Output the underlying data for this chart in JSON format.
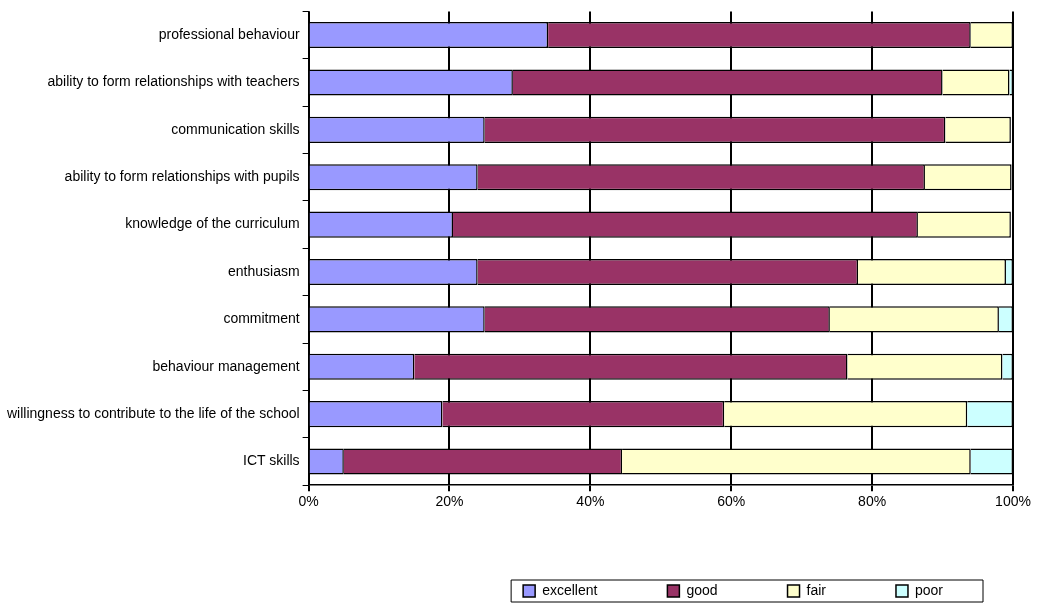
{
  "chart_data": {
    "type": "bar",
    "orientation": "horizontal",
    "stacked": true,
    "categories": [
      "professional behaviour",
      "ability to form relationships with teachers",
      "communication skills",
      "ability to form relationships with pupils",
      "knowledge of the curriculum",
      "enthusiasm",
      "commitment",
      "behaviour management",
      "willingness to contribute to the life of the school",
      "ICT skills"
    ],
    "series": [
      {
        "name": "excellent",
        "color": "#9999ff",
        "values": [
          34,
          29,
          25,
          24,
          20.5,
          24,
          25,
          15,
          19,
          5
        ]
      },
      {
        "name": "good",
        "color": "#993366",
        "values": [
          60,
          61,
          65.4,
          63.5,
          66,
          54,
          49,
          61.5,
          40,
          39.5
        ]
      },
      {
        "name": "fair",
        "color": "#ffffcc",
        "values": [
          6,
          9.5,
          9.3,
          12.3,
          13.2,
          21,
          24,
          22,
          34.5,
          49.5
        ]
      },
      {
        "name": "poor",
        "color": "#ccffff",
        "values": [
          0,
          0.5,
          null,
          null,
          null,
          1,
          2,
          1.5,
          6.5,
          6
        ]
      }
    ],
    "xlim": [
      0,
      100
    ],
    "xticks": [
      {
        "value": 0,
        "label": "0%"
      },
      {
        "value": 20,
        "label": "20%"
      },
      {
        "value": 40,
        "label": "40%"
      },
      {
        "value": 60,
        "label": "60%"
      },
      {
        "value": 80,
        "label": "80%"
      },
      {
        "value": 100,
        "label": "100%"
      }
    ],
    "grid": "x",
    "legend": "bottom"
  }
}
